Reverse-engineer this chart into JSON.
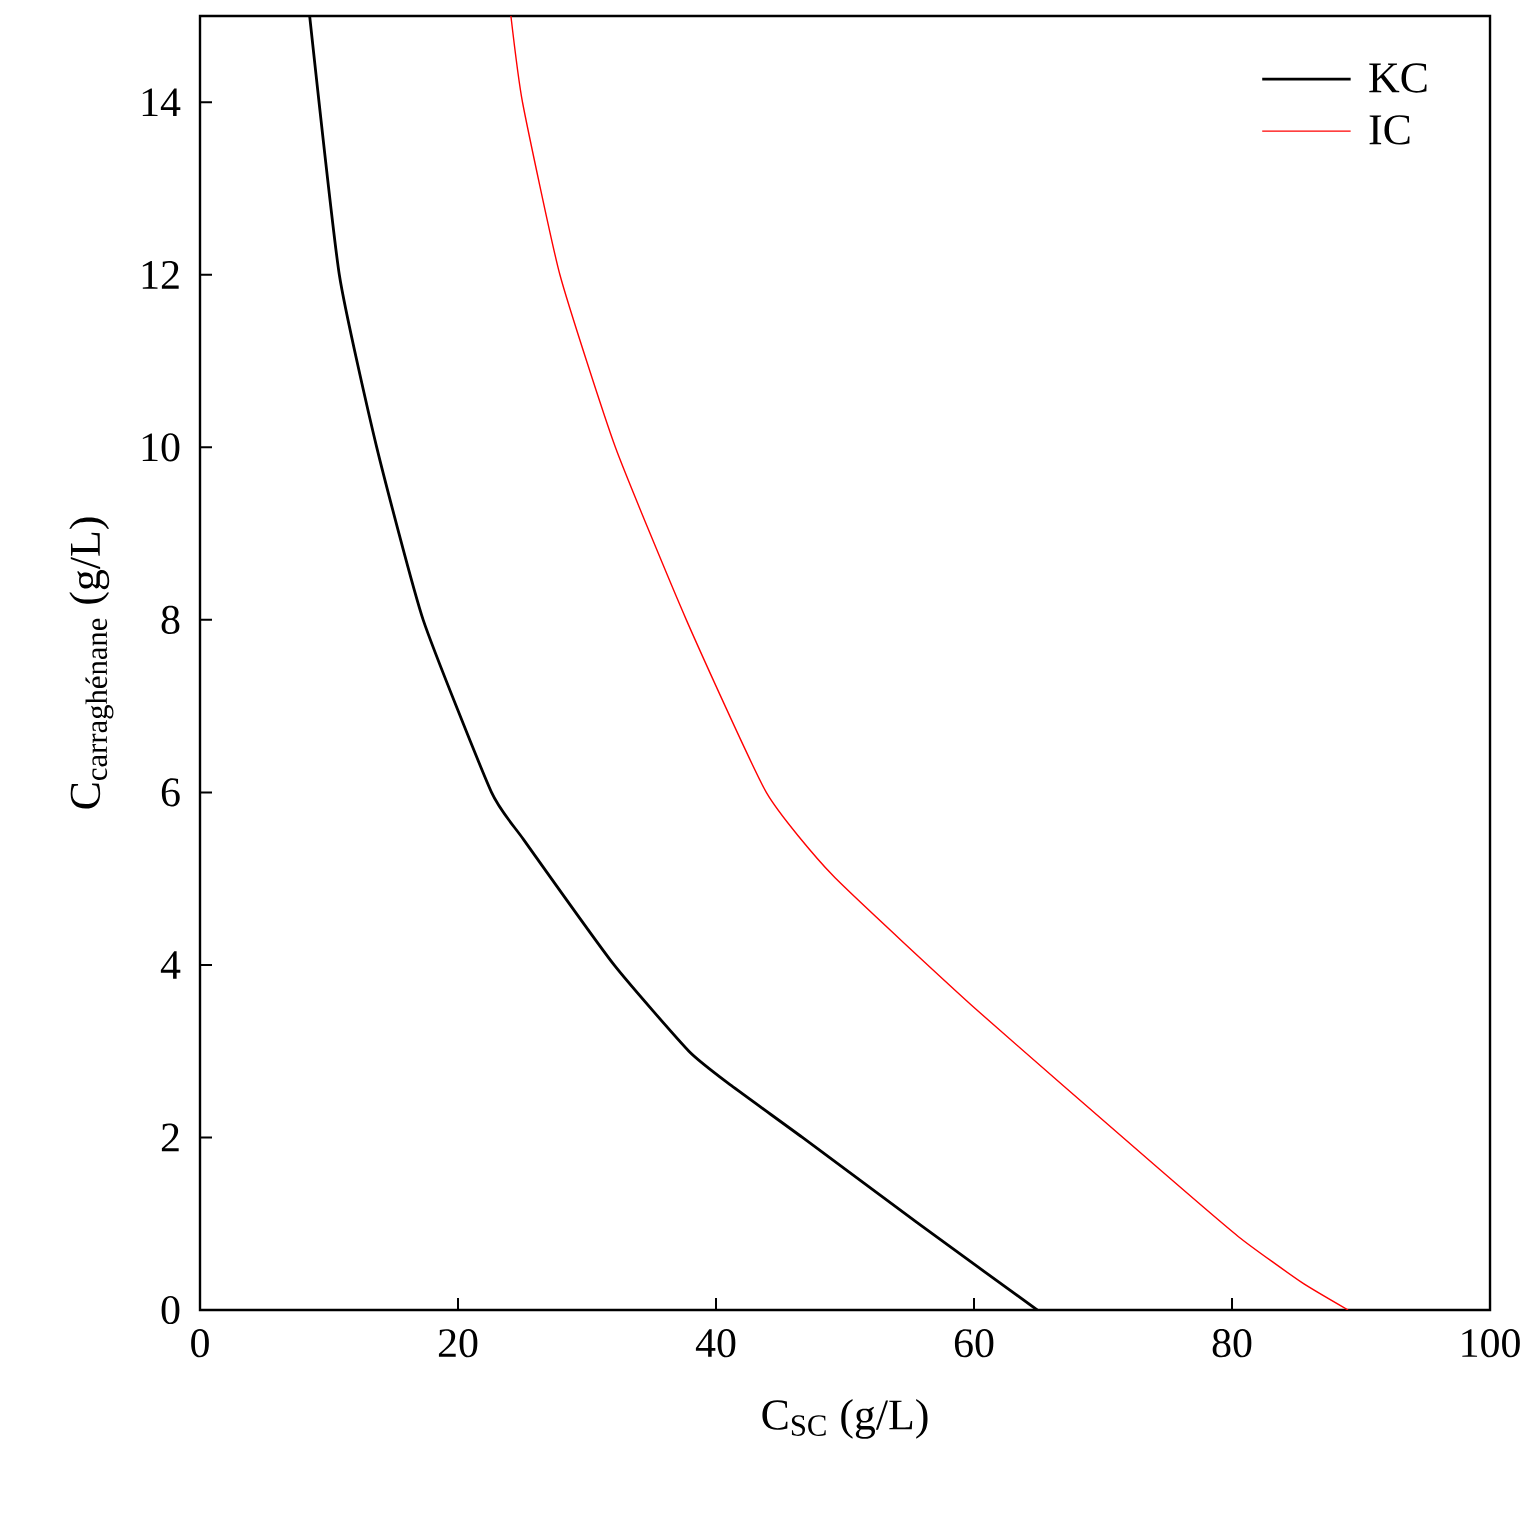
{
  "chart_data": {
    "type": "line",
    "xlabel": "C$_{SC}$ (g/L)",
    "ylabel": "\\text{C}_{\\text{carraghénane}}\\text{ (g/L)}",
    "xlim": [
      0,
      100
    ],
    "xticks": [
      0,
      20,
      40,
      60,
      80,
      100
    ],
    "ylim": [
      0,
      15
    ],
    "yticks": [
      0,
      2,
      4,
      6,
      8,
      10,
      12,
      14
    ],
    "legend": "top right",
    "series": [
      {
        "name": "KC",
        "color": "#000000",
        "x": [
          8.5,
          10.8,
          13.7,
          17.3,
          22.6,
          25.1,
          32.1,
          37.9,
          41.2,
          46.7,
          55.7,
          64.9
        ],
        "values": [
          15,
          12,
          10,
          8,
          6,
          5.45,
          4,
          3,
          2.6,
          2,
          1,
          0
        ]
      },
      {
        "name": "IC",
        "color": "#ff0000",
        "x": [
          24.1,
          25.0,
          27.9,
          32.2,
          37.7,
          43.9,
          49.1,
          60.2,
          74.0,
          80.5,
          85.4,
          89.0
        ],
        "values": [
          15,
          14,
          12,
          10,
          8,
          6,
          5.03,
          3.48,
          1.68,
          0.85,
          0.32,
          0
        ]
      }
    ]
  }
}
